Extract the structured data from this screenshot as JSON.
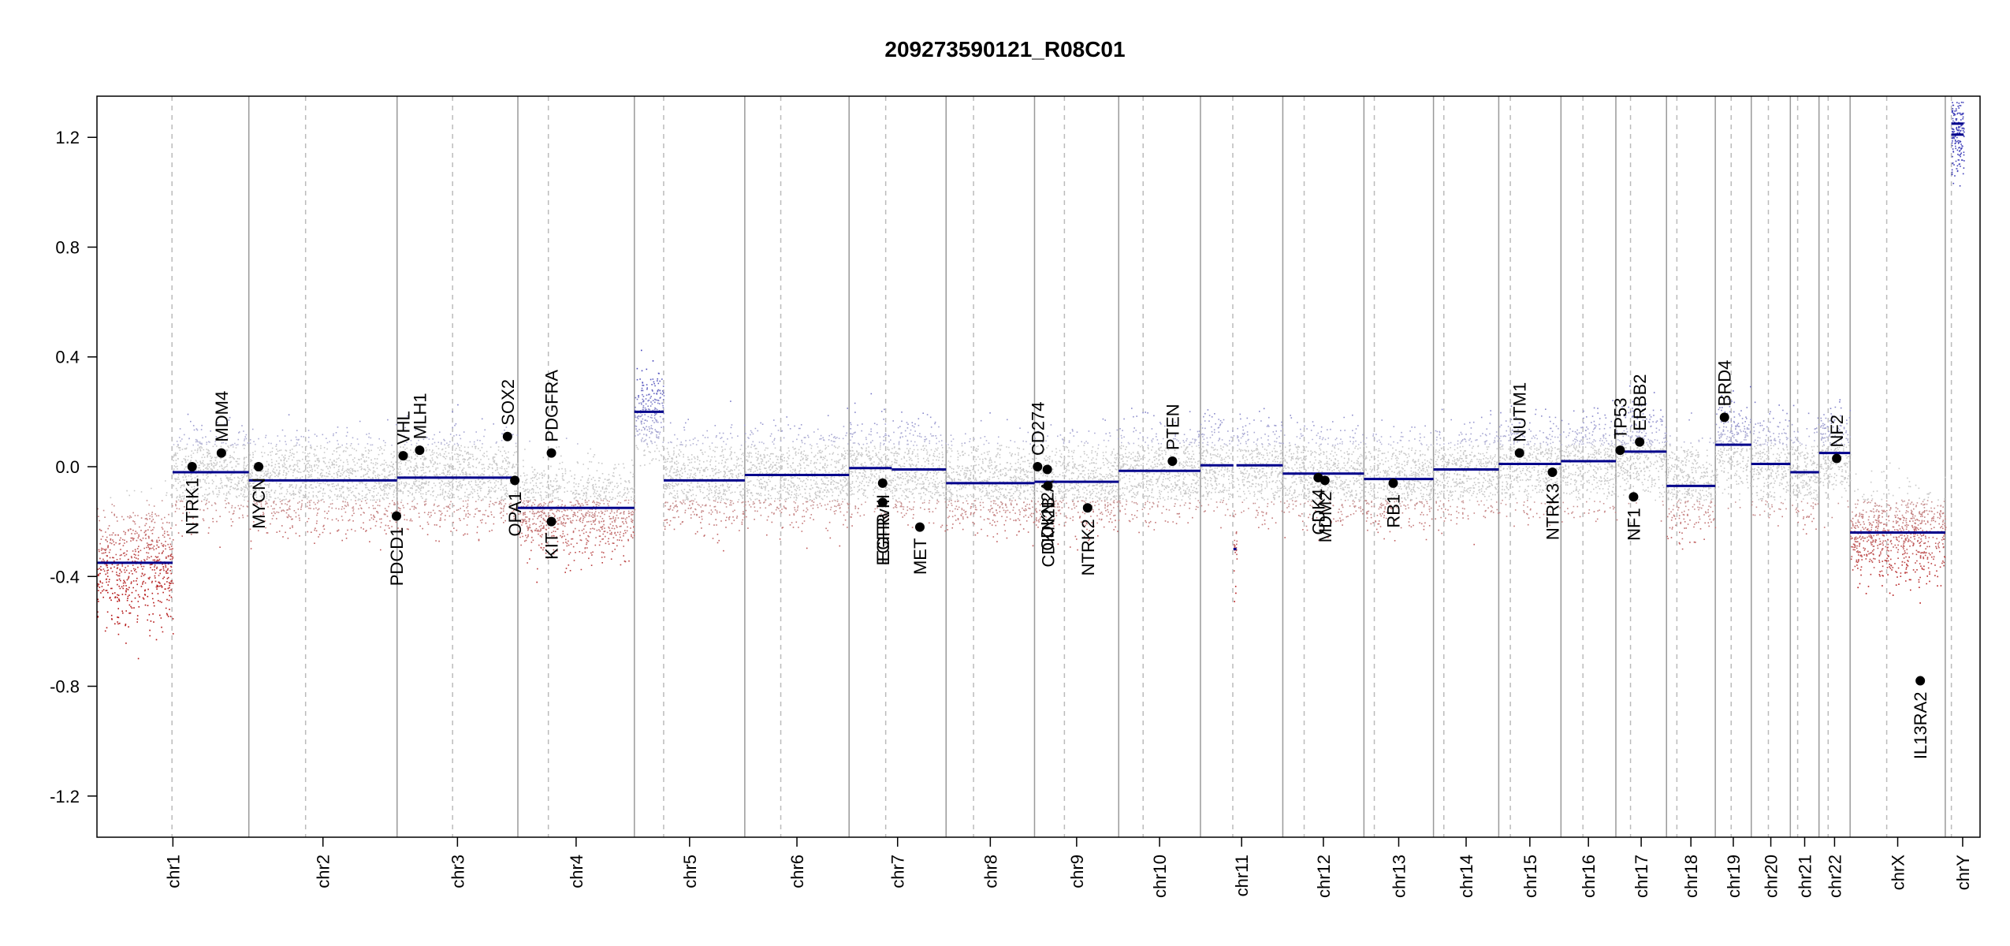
{
  "chart_data": {
    "type": "scatter",
    "title": "209273590121_R08C01",
    "xlabel": "",
    "ylabel": "",
    "ylim": [
      -1.35,
      1.35
    ],
    "y_ticks": [
      -1.2,
      -0.8,
      -0.4,
      0.0,
      0.4,
      0.8,
      1.2
    ],
    "y_tick_labels": [
      "-1.2",
      "-0.8",
      "-0.4",
      "0.0",
      "0.4",
      "0.8",
      "1.2"
    ],
    "chromosomes": [
      {
        "name": "chr1",
        "length": 249,
        "centromere": 123
      },
      {
        "name": "chr2",
        "length": 243,
        "centromere": 93
      },
      {
        "name": "chr3",
        "length": 198,
        "centromere": 91
      },
      {
        "name": "chr4",
        "length": 191,
        "centromere": 50
      },
      {
        "name": "chr5",
        "length": 181,
        "centromere": 48
      },
      {
        "name": "chr6",
        "length": 171,
        "centromere": 59
      },
      {
        "name": "chr7",
        "length": 159,
        "centromere": 60
      },
      {
        "name": "chr8",
        "length": 145,
        "centromere": 45
      },
      {
        "name": "chr9",
        "length": 138,
        "centromere": 49
      },
      {
        "name": "chr10",
        "length": 134,
        "centromere": 40
      },
      {
        "name": "chr11",
        "length": 135,
        "centromere": 53
      },
      {
        "name": "chr12",
        "length": 133,
        "centromere": 35
      },
      {
        "name": "chr13",
        "length": 114,
        "centromere": 17
      },
      {
        "name": "chr14",
        "length": 107,
        "centromere": 17
      },
      {
        "name": "chr15",
        "length": 102,
        "centromere": 19
      },
      {
        "name": "chr16",
        "length": 90,
        "centromere": 36
      },
      {
        "name": "chr17",
        "length": 83,
        "centromere": 24
      },
      {
        "name": "chr18",
        "length": 80,
        "centromere": 17
      },
      {
        "name": "chr19",
        "length": 59,
        "centromere": 26
      },
      {
        "name": "chr20",
        "length": 64,
        "centromere": 28
      },
      {
        "name": "chr21",
        "length": 47,
        "centromere": 12
      },
      {
        "name": "chr22",
        "length": 51,
        "centromere": 15
      },
      {
        "name": "chrX",
        "length": 156,
        "centromere": 60
      },
      {
        "name": "chrY",
        "length": 57,
        "centromere": 10
      }
    ],
    "segments": [
      {
        "chrom": "chr1",
        "start": 0,
        "end": 124,
        "value": -0.35
      },
      {
        "chrom": "chr1",
        "start": 124,
        "end": 249,
        "value": -0.02
      },
      {
        "chrom": "chr2",
        "start": 0,
        "end": 243,
        "value": -0.05
      },
      {
        "chrom": "chr3",
        "start": 0,
        "end": 198,
        "value": -0.04
      },
      {
        "chrom": "chr4",
        "start": 0,
        "end": 191,
        "value": -0.15
      },
      {
        "chrom": "chr5",
        "start": 0,
        "end": 48,
        "value": 0.2
      },
      {
        "chrom": "chr5",
        "start": 48,
        "end": 181,
        "value": -0.05
      },
      {
        "chrom": "chr6",
        "start": 0,
        "end": 171,
        "value": -0.03
      },
      {
        "chrom": "chr7",
        "start": 0,
        "end": 70,
        "value": -0.005
      },
      {
        "chrom": "chr7",
        "start": 70,
        "end": 159,
        "value": -0.01
      },
      {
        "chrom": "chr8",
        "start": 0,
        "end": 145,
        "value": -0.06
      },
      {
        "chrom": "chr9",
        "start": 0,
        "end": 138,
        "value": -0.055
      },
      {
        "chrom": "chr10",
        "start": 0,
        "end": 134,
        "value": -0.015
      },
      {
        "chrom": "chr11",
        "start": 0,
        "end": 54,
        "value": 0.005
      },
      {
        "chrom": "chr11",
        "start": 54,
        "end": 59,
        "value": -0.3
      },
      {
        "chrom": "chr11",
        "start": 59,
        "end": 135,
        "value": 0.005
      },
      {
        "chrom": "chr12",
        "start": 0,
        "end": 133,
        "value": -0.025
      },
      {
        "chrom": "chr13",
        "start": 0,
        "end": 114,
        "value": -0.045
      },
      {
        "chrom": "chr14",
        "start": 0,
        "end": 107,
        "value": -0.01
      },
      {
        "chrom": "chr15",
        "start": 0,
        "end": 102,
        "value": 0.01
      },
      {
        "chrom": "chr16",
        "start": 0,
        "end": 90,
        "value": 0.02
      },
      {
        "chrom": "chr17",
        "start": 0,
        "end": 83,
        "value": 0.055
      },
      {
        "chrom": "chr18",
        "start": 0,
        "end": 80,
        "value": -0.07
      },
      {
        "chrom": "chr19",
        "start": 0,
        "end": 59,
        "value": 0.08
      },
      {
        "chrom": "chr20",
        "start": 0,
        "end": 64,
        "value": 0.01
      },
      {
        "chrom": "chr21",
        "start": 0,
        "end": 47,
        "value": -0.02
      },
      {
        "chrom": "chr22",
        "start": 0,
        "end": 51,
        "value": 0.05
      },
      {
        "chrom": "chrX",
        "start": 0,
        "end": 156,
        "value": -0.24
      },
      {
        "chrom": "chrY",
        "start": 10,
        "end": 30,
        "value": 1.21
      },
      {
        "chrom": "chrY",
        "start": 10,
        "end": 30,
        "value": 1.25
      }
    ],
    "genes": [
      {
        "name": "NTRK1",
        "chrom": "chr1",
        "pos": 156,
        "value": 0.0,
        "label_side": "below"
      },
      {
        "name": "MDM4",
        "chrom": "chr1",
        "pos": 204,
        "value": 0.05,
        "label_side": "above"
      },
      {
        "name": "MYCN",
        "chrom": "chr2",
        "pos": 16,
        "value": 0.0,
        "label_side": "below"
      },
      {
        "name": "PDCD1",
        "chrom": "chr2",
        "pos": 242,
        "value": -0.18,
        "label_side": "below"
      },
      {
        "name": "VHL",
        "chrom": "chr3",
        "pos": 10,
        "value": 0.04,
        "label_side": "above"
      },
      {
        "name": "MLH1",
        "chrom": "chr3",
        "pos": 37,
        "value": 0.06,
        "label_side": "above"
      },
      {
        "name": "SOX2",
        "chrom": "chr3",
        "pos": 181,
        "value": 0.11,
        "label_side": "above"
      },
      {
        "name": "OPA1",
        "chrom": "chr3",
        "pos": 193,
        "value": -0.05,
        "label_side": "below"
      },
      {
        "name": "PDGFRA",
        "chrom": "chr4",
        "pos": 55,
        "value": 0.05,
        "label_side": "above"
      },
      {
        "name": "KIT",
        "chrom": "chr4",
        "pos": 55,
        "value": -0.2,
        "label_side": "below"
      },
      {
        "name": "EGFR",
        "chrom": "chr7",
        "pos": 55,
        "value": -0.13,
        "label_side": "below"
      },
      {
        "name": "EGFRvIII",
        "chrom": "chr7",
        "pos": 55,
        "value": -0.06,
        "label_side": "below"
      },
      {
        "name": "MET",
        "chrom": "chr7",
        "pos": 116,
        "value": -0.22,
        "label_side": "below"
      },
      {
        "name": "CD274",
        "chrom": "chr9",
        "pos": 5,
        "value": 0.0,
        "label_side": "above"
      },
      {
        "name": "CDKN2A",
        "chrom": "chr9",
        "pos": 21,
        "value": -0.01,
        "label_side": "below"
      },
      {
        "name": "CDKN2B",
        "chrom": "chr9",
        "pos": 22,
        "value": -0.07,
        "label_side": "below"
      },
      {
        "name": "NTRK2",
        "chrom": "chr9",
        "pos": 87,
        "value": -0.15,
        "label_side": "below"
      },
      {
        "name": "PTEN",
        "chrom": "chr10",
        "pos": 88,
        "value": 0.02,
        "label_side": "above"
      },
      {
        "name": "CDK4",
        "chrom": "chr12",
        "pos": 58,
        "value": -0.04,
        "label_side": "below"
      },
      {
        "name": "MDM2",
        "chrom": "chr12",
        "pos": 69,
        "value": -0.05,
        "label_side": "below"
      },
      {
        "name": "RB1",
        "chrom": "chr13",
        "pos": 48,
        "value": -0.06,
        "label_side": "below"
      },
      {
        "name": "NUTM1",
        "chrom": "chr15",
        "pos": 34,
        "value": 0.05,
        "label_side": "above"
      },
      {
        "name": "NTRK3",
        "chrom": "chr15",
        "pos": 88,
        "value": -0.02,
        "label_side": "below"
      },
      {
        "name": "TP53",
        "chrom": "chr17",
        "pos": 7,
        "value": 0.06,
        "label_side": "above"
      },
      {
        "name": "NF1",
        "chrom": "chr17",
        "pos": 29,
        "value": -0.11,
        "label_side": "below"
      },
      {
        "name": "ERBB2",
        "chrom": "chr17",
        "pos": 39,
        "value": 0.09,
        "label_side": "above"
      },
      {
        "name": "BRD4",
        "chrom": "chr19",
        "pos": 15,
        "value": 0.18,
        "label_side": "above"
      },
      {
        "name": "NF2",
        "chrom": "chr22",
        "pos": 29,
        "value": 0.03,
        "label_side": "above"
      },
      {
        "name": "IL13RA2",
        "chrom": "chrX",
        "pos": 115,
        "value": -0.78,
        "label_side": "below"
      }
    ],
    "colors": {
      "gain": "#3a3ab0",
      "loss": "#b01818",
      "neutral": "#aaaaaa",
      "segment": "#00008b",
      "chrom_boundary": "#999999",
      "centromere": "#bbbbbb"
    }
  }
}
